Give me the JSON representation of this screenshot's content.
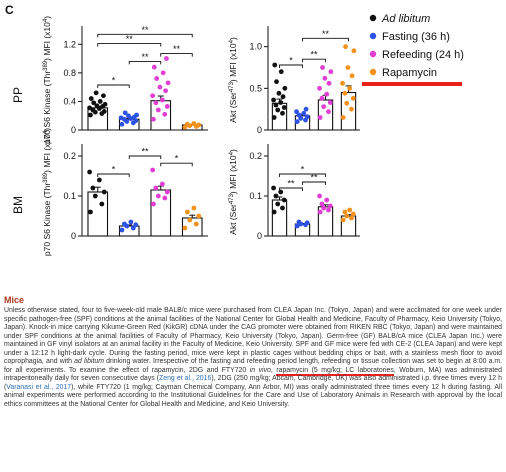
{
  "panel_label": "C",
  "colors": {
    "ad_libitum": "#111111",
    "fasting": "#2d52e6",
    "refeeding": "#e13fd4",
    "rapamycin": "#f2911b",
    "highlight": "#e8211f",
    "section_title": "#b23a1e",
    "link": "#3070b8"
  },
  "row_labels": [
    "PP",
    "BM"
  ],
  "significance_label": "**",
  "legend": [
    {
      "label": "Ad libitum",
      "italic": true,
      "color": "#111111"
    },
    {
      "label": "Fasting (36 h)",
      "italic": false,
      "color": "#2d52e6"
    },
    {
      "label": "Refeeding (24 h)",
      "italic": false,
      "color": "#e13fd4"
    },
    {
      "label": "Rapamycin",
      "italic": false,
      "color": "#f2911b"
    }
  ],
  "chart_data": [
    {
      "type": "bar",
      "row": "PP",
      "ylabel": [
        "p70 S6 Kinase (Thr",
        "389",
        ") MFI (x10",
        "4",
        ")"
      ],
      "categories": [
        "Ad libitum",
        "Fasting (36 h)",
        "Refeeding (24 h)",
        "Rapamycin"
      ],
      "values": [
        0.31,
        0.15,
        0.41,
        0.07
      ],
      "ylim": [
        0,
        1.4
      ],
      "yticks": [
        0,
        0.4,
        0.8,
        1.2
      ],
      "yticklabels": [
        "0",
        "0.4",
        "0.8",
        "1.2"
      ],
      "points": [
        [
          0.21,
          0.23,
          0.25,
          0.26,
          0.28,
          0.3,
          0.31,
          0.33,
          0.34,
          0.36,
          0.38,
          0.4,
          0.44,
          0.48,
          0.52
        ],
        [
          0.08,
          0.1,
          0.12,
          0.13,
          0.15,
          0.16,
          0.17,
          0.18,
          0.2,
          0.21,
          0.24
        ],
        [
          0.15,
          0.22,
          0.28,
          0.33,
          0.38,
          0.42,
          0.48,
          0.55,
          0.6,
          0.66,
          0.72,
          0.8,
          0.88,
          1.0
        ],
        [
          0.04,
          0.05,
          0.06,
          0.07,
          0.08,
          0.09
        ]
      ],
      "sig": [
        {
          "a": 0,
          "b": 1,
          "label": "*",
          "y": 0.63
        },
        {
          "a": 1,
          "b": 2,
          "label": "**",
          "y": 0.96
        },
        {
          "a": 2,
          "b": 3,
          "label": "**",
          "y": 1.07
        },
        {
          "a": 0,
          "b": 2,
          "label": "**",
          "y": 1.21
        },
        {
          "a": 0,
          "b": 3,
          "label": "**",
          "y": 1.34
        }
      ]
    },
    {
      "type": "bar",
      "row": "PP",
      "ylabel": [
        "Akt (Ser",
        "473",
        ") MFI (x10",
        "4",
        ")"
      ],
      "categories": [
        "Ad libitum",
        "Fasting (36 h)",
        "Refeeding (24 h)",
        "Rapamycin"
      ],
      "values": [
        0.32,
        0.17,
        0.36,
        0.45
      ],
      "ylim": [
        0,
        1.2
      ],
      "yticks": [
        0,
        0.5,
        1.0
      ],
      "yticklabels": [
        "0",
        "0.5",
        "1.0"
      ],
      "points": [
        [
          0.15,
          0.2,
          0.24,
          0.27,
          0.3,
          0.33,
          0.36,
          0.4,
          0.44,
          0.5,
          0.58,
          0.7,
          0.78
        ],
        [
          0.1,
          0.12,
          0.14,
          0.16,
          0.18,
          0.2,
          0.22,
          0.25
        ],
        [
          0.15,
          0.22,
          0.28,
          0.33,
          0.38,
          0.43,
          0.5,
          0.56,
          0.62,
          0.7,
          0.75
        ],
        [
          0.15,
          0.25,
          0.32,
          0.38,
          0.44,
          0.5,
          0.56,
          0.65,
          0.75,
          0.95,
          1.0
        ]
      ],
      "sig": [
        {
          "a": 0,
          "b": 1,
          "label": "*",
          "y": 0.78
        },
        {
          "a": 1,
          "b": 2,
          "label": "**",
          "y": 0.85
        },
        {
          "a": 1,
          "b": 3,
          "label": "**",
          "y": 1.1
        }
      ]
    },
    {
      "type": "bar",
      "row": "BM",
      "ylabel": [
        "p70 S6 Kinase (Thr",
        "389",
        ") MFI (x10",
        "4",
        ")"
      ],
      "categories": [
        "Ad libitum",
        "Fasting (36 h)",
        "Refeeding (24 h)",
        "Rapamycin"
      ],
      "values": [
        0.11,
        0.025,
        0.115,
        0.045
      ],
      "ylim": [
        0,
        0.22
      ],
      "yticks": [
        0,
        0.1,
        0.2
      ],
      "yticklabels": [
        "0",
        "0.1",
        "0.2"
      ],
      "points": [
        [
          0.06,
          0.08,
          0.1,
          0.11,
          0.12,
          0.14,
          0.16
        ],
        [
          0.015,
          0.02,
          0.025,
          0.028,
          0.03,
          0.035
        ],
        [
          0.08,
          0.095,
          0.1,
          0.11,
          0.12,
          0.13,
          0.165
        ],
        [
          0.02,
          0.03,
          0.04,
          0.05,
          0.06,
          0.07
        ]
      ],
      "sig": [
        {
          "a": 0,
          "b": 1,
          "label": "*",
          "y": 0.155
        },
        {
          "a": 2,
          "b": 3,
          "label": "*",
          "y": 0.182
        },
        {
          "a": 1,
          "b": 2,
          "label": "**",
          "y": 0.2
        }
      ]
    },
    {
      "type": "bar",
      "row": "BM",
      "ylabel": [
        "Akt (Ser",
        "473",
        ") MFI (x10",
        "4",
        ")"
      ],
      "categories": [
        "Ad libitum",
        "Fasting (36 h)",
        "Refeeding (24 h)",
        "Rapamycin"
      ],
      "values": [
        0.09,
        0.03,
        0.073,
        0.05
      ],
      "ylim": [
        0,
        0.22
      ],
      "yticks": [
        0,
        0.1,
        0.2
      ],
      "yticklabels": [
        "0",
        "0.1",
        "0.2"
      ],
      "points": [
        [
          0.06,
          0.07,
          0.08,
          0.09,
          0.1,
          0.11,
          0.12
        ],
        [
          0.025,
          0.028,
          0.03,
          0.033,
          0.035
        ],
        [
          0.06,
          0.065,
          0.07,
          0.075,
          0.08,
          0.09,
          0.1
        ],
        [
          0.04,
          0.045,
          0.05,
          0.055,
          0.06,
          0.065
        ]
      ],
      "sig": [
        {
          "a": 0,
          "b": 1,
          "label": "**",
          "y": 0.12
        },
        {
          "a": 1,
          "b": 2,
          "label": "**",
          "y": 0.135
        },
        {
          "a": 0,
          "b": 2,
          "label": "*",
          "y": 0.155
        }
      ]
    }
  ],
  "methods": {
    "title": "Mice",
    "p1": "Unless otherwise stated, four to five-week-old male BALB/c mice were purchased from CLEA Japan Inc. (Tokyo, Japan) and were acclimated for one week under specific pathogen-free (SPF) conditions at the animal facilities of the National Center for Global Health and Medicine, Faculty of Pharmacy, Keio University (Tokyo, Japan). Knock-in mice carrying Kikume-Green Red (KikGR) cDNA under the CAG promoter were obtained from RIKEN RBC (Tokyo, Japan) and were maintained under SPF conditions at the animal facilities of Faculty of Pharmacy, Keio University (Tokyo, Japan). Germ-free (GF) BALB/cA mice (CLEA Japan Inc.) were maintained in GF vinyl isolators at an animal facility in the Faculty of Medicine, Keio University. SPF and GF mice were fed with CE-2 (CLEA Japan) and were kept under a 12:12 h light-dark cycle. During the fasting period, mice were kept in plastic cages without bedding chips or bait, with a stainless mesh floor to avoid coprophagia, and with ",
    "p1_em": "ad libitum",
    "p2": " drinking water. Irrespective of the fasting and refeeding period length, refeeding or tissue collection was set to begin at 8:00 a.m. for all experiments. To examine the effect of rapamycin, 2DG and FTY720 ",
    "p2_em": "in vivo",
    "p3": ", ",
    "hl1": "rapamycin (5 mg/kg; ",
    "hl2": "LC laboratories",
    "p4": ", Woburn, MA) was administrated intraperitoneally daily for seven consecutive days (",
    "ref1": "Zeng et al., 2016",
    "p5": "), 2DG (250 mg/kg; Abcam, Cambridge, UK) was also administrated i.p. three times every 12 h (",
    "ref2": "Varanasi et al., 2017",
    "p6": "), while FTY720 (1 mg/kg; Cayman Chemical Company, Ann Arbor, MI) was orally administrated three times every 12 h during fasting. All animal experiments were performed according to the Institutional Guidelines for the Care and Use of Laboratory Animals in Research with approval by the local ethics committees at the National Center for Global Health and Medicine, and Keio University."
  }
}
